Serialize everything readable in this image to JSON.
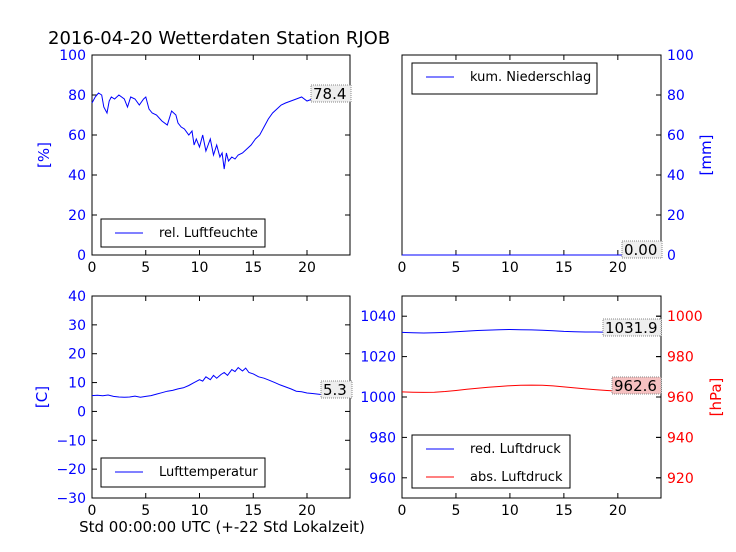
{
  "title": "2016-04-20 Wetterdaten Station RJOB",
  "xlabel": "Std 00:00:00 UTC (+-22 Std Lokalzeit)",
  "colors": {
    "axis_left": "#0000ff",
    "axis_right_pressure": "#ff0000",
    "line_blue": "#0000ff",
    "line_red": "#ff0000"
  },
  "chart_data": [
    {
      "id": "humidity",
      "type": "line",
      "ylabel": "[%]",
      "xlim": [
        0,
        24
      ],
      "ylim": [
        0,
        100
      ],
      "xticks": [
        0,
        5,
        10,
        15,
        20
      ],
      "yticks": [
        0,
        20,
        40,
        60,
        80,
        100
      ],
      "legend": {
        "label": "rel. Luftfeuchte",
        "placement": "lower-center"
      },
      "annotation": "78.4",
      "series": [
        {
          "name": "rel. Luftfeuchte",
          "color": "#0000ff",
          "x": [
            0,
            0.3,
            0.6,
            0.9,
            1.1,
            1.4,
            1.6,
            1.8,
            2.1,
            2.5,
            3.0,
            3.3,
            3.6,
            4.0,
            4.4,
            4.8,
            5.0,
            5.3,
            5.6,
            6.0,
            6.5,
            7.0,
            7.4,
            7.8,
            8.0,
            8.3,
            8.6,
            9.0,
            9.3,
            9.5,
            9.7,
            10.0,
            10.3,
            10.6,
            11.0,
            11.3,
            11.6,
            11.9,
            12.1,
            12.3,
            12.5,
            12.7,
            13.0,
            13.3,
            13.6,
            14.0,
            14.4,
            14.8,
            15.2,
            15.6,
            16.0,
            16.4,
            16.8,
            17.2,
            17.6,
            18.0,
            18.5,
            19.0,
            19.5,
            20.0,
            20.5,
            21.0,
            21.5,
            22.0,
            22.5,
            23.0,
            23.5,
            24.0
          ],
          "y": [
            76,
            79,
            81,
            80,
            74,
            71,
            77,
            79,
            78,
            80,
            78,
            74,
            79,
            78,
            75,
            78,
            79,
            73,
            71,
            70,
            67,
            65,
            72,
            70,
            66,
            64,
            63,
            60,
            62,
            55,
            58,
            54,
            60,
            52,
            58,
            50,
            55,
            49,
            51,
            43,
            51,
            47,
            49,
            48,
            50,
            51,
            53,
            55,
            58,
            60,
            64,
            68,
            71,
            73,
            75,
            76,
            77,
            78,
            79,
            77,
            78,
            78,
            78,
            78,
            78,
            78.4,
            78.4,
            78.4
          ]
        }
      ]
    },
    {
      "id": "precipitation",
      "type": "line",
      "ylabel": "[mm]",
      "xlim": [
        0,
        24
      ],
      "ylim": [
        0,
        100
      ],
      "xticks": [
        0,
        5,
        10,
        15,
        20
      ],
      "yticks": [
        0,
        20,
        40,
        60,
        80,
        100
      ],
      "legend": {
        "label": "kum. Niederschlag",
        "placement": "upper-center"
      },
      "annotation": "0.00",
      "series": [
        {
          "name": "kum. Niederschlag",
          "color": "#0000ff",
          "x": [
            0,
            24
          ],
          "y": [
            0,
            0
          ]
        }
      ]
    },
    {
      "id": "temperature",
      "type": "line",
      "ylabel": "[C]",
      "xlim": [
        0,
        24
      ],
      "ylim": [
        -30,
        40
      ],
      "xticks": [
        0,
        5,
        10,
        15,
        20
      ],
      "yticks": [
        -30,
        -20,
        -10,
        0,
        10,
        20,
        30,
        40
      ],
      "legend": {
        "label": "Lufttemperatur",
        "placement": "lower-center"
      },
      "annotation": "5.3",
      "series": [
        {
          "name": "Lufttemperatur",
          "color": "#0000ff",
          "x": [
            0,
            0.5,
            1.0,
            1.5,
            2.0,
            2.5,
            3.0,
            3.5,
            4.0,
            4.5,
            5.0,
            5.5,
            6.0,
            6.5,
            7.0,
            7.5,
            8.0,
            8.5,
            9.0,
            9.5,
            10.0,
            10.3,
            10.6,
            11.0,
            11.3,
            11.6,
            12.0,
            12.3,
            12.6,
            13.0,
            13.3,
            13.6,
            14.0,
            14.3,
            14.6,
            15.0,
            15.5,
            16.0,
            16.5,
            17.0,
            17.5,
            18.0,
            18.5,
            19.0,
            19.5,
            20.0,
            20.5,
            21.0,
            21.5,
            22.0,
            22.5,
            23.0,
            23.5,
            24.0
          ],
          "y": [
            5.5,
            5.6,
            5.4,
            5.7,
            5.2,
            5.0,
            4.9,
            5.0,
            5.3,
            4.9,
            5.2,
            5.5,
            6.0,
            6.5,
            7.0,
            7.3,
            7.8,
            8.2,
            9.0,
            10.0,
            11.0,
            10.5,
            12.0,
            11.0,
            12.5,
            11.5,
            12.8,
            13.5,
            12.5,
            14.5,
            13.8,
            15.2,
            14.0,
            15.0,
            13.5,
            13.0,
            12.0,
            11.5,
            10.8,
            10.0,
            9.2,
            8.5,
            7.8,
            7.0,
            6.8,
            6.4,
            6.2,
            6.0,
            5.8,
            5.5,
            5.3,
            5.4,
            5.3,
            5.3
          ]
        }
      ]
    },
    {
      "id": "pressure",
      "type": "line",
      "xlim": [
        0,
        24
      ],
      "ylim_left": [
        950,
        1050
      ],
      "ylim_right": [
        910,
        1010
      ],
      "ylabel_right": "[hPa]",
      "xticks": [
        0,
        5,
        10,
        15,
        20
      ],
      "yticks_left": [
        960,
        980,
        1000,
        1020,
        1040
      ],
      "yticks_right": [
        920,
        940,
        960,
        980,
        1000
      ],
      "legend": {
        "labels": [
          "red. Luftdruck",
          "abs. Luftdruck"
        ],
        "placement": "lower-center"
      },
      "annotations": [
        "1031.9",
        "962.6"
      ],
      "series": [
        {
          "name": "red. Luftdruck",
          "color": "#0000ff",
          "axis": "left",
          "x": [
            0,
            1,
            2,
            3,
            4,
            5,
            6,
            7,
            8,
            9,
            10,
            11,
            12,
            13,
            14,
            15,
            16,
            17,
            18,
            19,
            20,
            21,
            22,
            23,
            24
          ],
          "y": [
            1032,
            1031.8,
            1031.7,
            1031.8,
            1032.0,
            1032.3,
            1032.6,
            1032.9,
            1033.1,
            1033.3,
            1033.4,
            1033.3,
            1033.2,
            1033.0,
            1032.8,
            1032.5,
            1032.3,
            1032.2,
            1032.2,
            1032.1,
            1032.0,
            1032.0,
            1031.9,
            1031.9,
            1031.9
          ]
        },
        {
          "name": "abs. Luftdruck",
          "color": "#ff0000",
          "axis": "right",
          "x": [
            0,
            1,
            2,
            3,
            4,
            5,
            6,
            7,
            8,
            9,
            10,
            11,
            12,
            13,
            14,
            15,
            16,
            17,
            18,
            19,
            20,
            21,
            22,
            23,
            24
          ],
          "y": [
            962.5,
            962.4,
            962.3,
            962.4,
            962.7,
            963.2,
            963.8,
            964.3,
            964.8,
            965.2,
            965.6,
            965.8,
            965.9,
            965.8,
            965.5,
            965.0,
            964.5,
            964.0,
            963.6,
            963.2,
            962.9,
            962.7,
            962.6,
            962.6,
            962.6
          ]
        }
      ]
    }
  ]
}
